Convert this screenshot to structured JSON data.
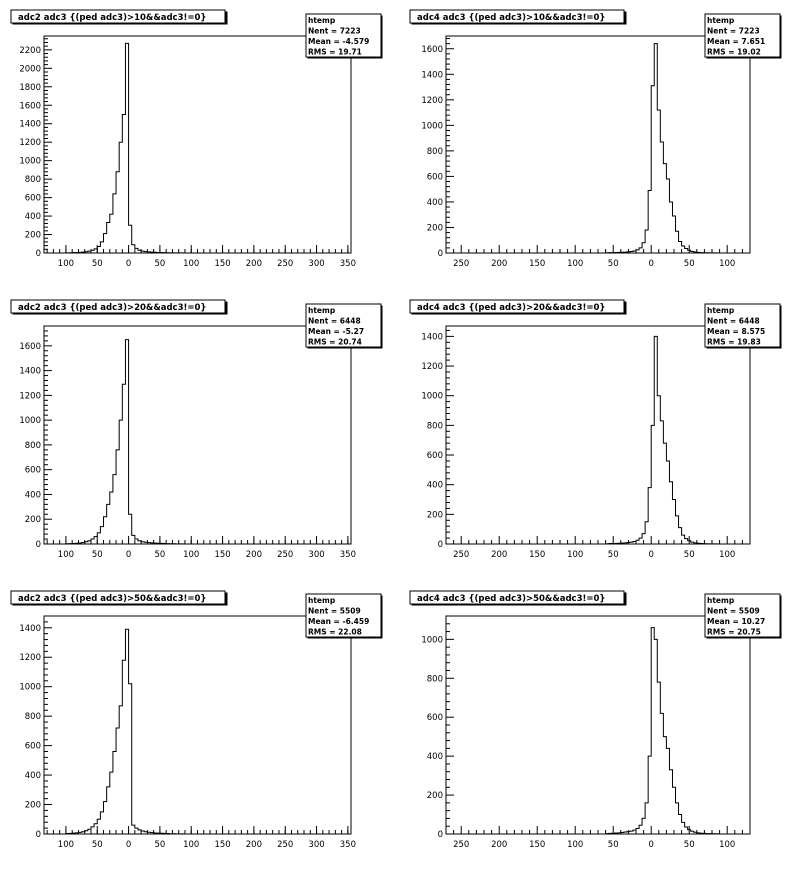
{
  "chart_data": [
    {
      "type": "histogram",
      "title": "adc2 adc3 {(ped adc3)>10&&adc3!=0}",
      "stats": {
        "name": "htemp",
        "entries_label": "Nent = 7223",
        "mean_label": "Mean = -4.579",
        "rms_label": "RMS = 19.71"
      },
      "xlim": [
        -135,
        355
      ],
      "ylim": [
        0,
        2350
      ],
      "xticks": [
        -100,
        -50,
        0,
        50,
        100,
        150,
        200,
        250,
        300,
        350
      ],
      "xtick_labels": [
        "100",
        "50",
        "0",
        "50",
        "100",
        "150",
        "200",
        "250",
        "300",
        "350"
      ],
      "yticks": [
        0,
        200,
        400,
        600,
        800,
        1000,
        1200,
        1400,
        1600,
        1800,
        2000,
        2200
      ],
      "ytick_labels": [
        "0",
        "200",
        "400",
        "600",
        "800",
        "1000",
        "1200",
        "1400",
        "1600",
        "1800",
        "2000",
        "2200"
      ],
      "bin_width": 5,
      "bins_start": -100,
      "values": [
        2,
        3,
        4,
        5,
        7,
        10,
        14,
        20,
        30,
        45,
        70,
        120,
        210,
        330,
        420,
        640,
        880,
        1200,
        1500,
        2270,
        300,
        90,
        50,
        30,
        20,
        15,
        12,
        10,
        8,
        6,
        5,
        4,
        3,
        2,
        2,
        2,
        1,
        1
      ]
    },
    {
      "type": "histogram",
      "title": "adc4 adc3 {(ped adc3)>10&&adc3!=0}",
      "stats": {
        "name": "htemp",
        "entries_label": "Nent = 7223",
        "mean_label": "Mean = 7.651",
        "rms_label": "RMS = 19.02"
      },
      "xlim": [
        -270,
        130
      ],
      "ylim": [
        0,
        1700
      ],
      "xticks": [
        -250,
        -200,
        -150,
        -100,
        -50,
        0,
        50,
        100
      ],
      "xtick_labels": [
        "250",
        "200",
        "150",
        "100",
        "50",
        "0",
        "50",
        "100"
      ],
      "yticks": [
        0,
        200,
        400,
        600,
        800,
        1000,
        1200,
        1400,
        1600
      ],
      "ytick_labels": [
        "0",
        "200",
        "400",
        "600",
        "800",
        "1000",
        "1200",
        "1400",
        "1600"
      ],
      "bin_width": 4,
      "bins_start": -60,
      "values": [
        2,
        3,
        3,
        4,
        5,
        6,
        7,
        9,
        12,
        16,
        24,
        40,
        80,
        180,
        490,
        1310,
        1640,
        1120,
        870,
        700,
        580,
        400,
        290,
        170,
        90,
        55,
        35,
        22,
        12,
        8,
        5,
        3,
        2,
        2,
        1,
        1,
        1
      ]
    },
    {
      "type": "histogram",
      "title": "adc2 adc3 {(ped adc3)>20&&adc3!=0}",
      "stats": {
        "name": "htemp",
        "entries_label": "Nent = 6448",
        "mean_label": "Mean = -5.27",
        "rms_label": "RMS = 20.74"
      },
      "xlim": [
        -135,
        355
      ],
      "ylim": [
        0,
        1760
      ],
      "xticks": [
        -100,
        -50,
        0,
        50,
        100,
        150,
        200,
        250,
        300,
        350
      ],
      "xtick_labels": [
        "100",
        "50",
        "0",
        "50",
        "100",
        "150",
        "200",
        "250",
        "300",
        "350"
      ],
      "yticks": [
        0,
        200,
        400,
        600,
        800,
        1000,
        1200,
        1400,
        1600
      ],
      "ytick_labels": [
        "0",
        "200",
        "400",
        "600",
        "800",
        "1000",
        "1200",
        "1400",
        "1600"
      ],
      "bin_width": 5,
      "bins_start": -100,
      "values": [
        2,
        3,
        4,
        6,
        8,
        12,
        18,
        26,
        40,
        60,
        90,
        140,
        220,
        320,
        420,
        560,
        760,
        1000,
        1290,
        1650,
        240,
        70,
        40,
        25,
        18,
        14,
        11,
        9,
        7,
        6,
        5,
        4,
        3,
        2,
        2,
        1,
        1,
        1
      ]
    },
    {
      "type": "histogram",
      "title": "adc4 adc3 {(ped adc3)>20&&adc3!=0}",
      "stats": {
        "name": "htemp",
        "entries_label": "Nent = 6448",
        "mean_label": "Mean = 8.575",
        "rms_label": "RMS = 19.83"
      },
      "xlim": [
        -270,
        130
      ],
      "ylim": [
        0,
        1470
      ],
      "xticks": [
        -250,
        -200,
        -150,
        -100,
        -50,
        0,
        50,
        100
      ],
      "xtick_labels": [
        "250",
        "200",
        "150",
        "100",
        "50",
        "0",
        "50",
        "100"
      ],
      "yticks": [
        0,
        200,
        400,
        600,
        800,
        1000,
        1200,
        1400
      ],
      "ytick_labels": [
        "0",
        "200",
        "400",
        "600",
        "800",
        "1000",
        "1200",
        "1400"
      ],
      "bin_width": 4,
      "bins_start": -60,
      "values": [
        2,
        3,
        3,
        4,
        5,
        6,
        8,
        10,
        13,
        17,
        25,
        40,
        70,
        150,
        380,
        800,
        1400,
        1000,
        830,
        680,
        560,
        420,
        300,
        190,
        110,
        60,
        36,
        22,
        13,
        8,
        5,
        3,
        2,
        2,
        1,
        1,
        1
      ]
    },
    {
      "type": "histogram",
      "title": "adc2 adc3 {(ped adc3)>50&&adc3!=0}",
      "stats": {
        "name": "htemp",
        "entries_label": "Nent = 5509",
        "mean_label": "Mean = -6.459",
        "rms_label": "RMS = 22.08"
      },
      "xlim": [
        -135,
        355
      ],
      "ylim": [
        0,
        1480
      ],
      "xticks": [
        -100,
        -50,
        0,
        50,
        100,
        150,
        200,
        250,
        300,
        350
      ],
      "xtick_labels": [
        "100",
        "50",
        "0",
        "50",
        "100",
        "150",
        "200",
        "250",
        "300",
        "350"
      ],
      "yticks": [
        0,
        200,
        400,
        600,
        800,
        1000,
        1200,
        1400
      ],
      "ytick_labels": [
        "0",
        "200",
        "400",
        "600",
        "800",
        "1000",
        "1200",
        "1400"
      ],
      "bin_width": 5,
      "bins_start": -100,
      "values": [
        3,
        4,
        6,
        8,
        11,
        15,
        22,
        32,
        48,
        70,
        100,
        150,
        220,
        320,
        420,
        560,
        720,
        870,
        1180,
        1390,
        1020,
        60,
        40,
        28,
        20,
        15,
        12,
        9,
        7,
        6,
        5,
        4,
        3,
        2,
        2,
        1,
        1,
        1
      ]
    },
    {
      "type": "histogram",
      "title": "adc4 adc3 {(ped adc3)>50&&adc3!=0}",
      "stats": {
        "name": "htemp",
        "entries_label": "Nent = 5509",
        "mean_label": "Mean = 10.27",
        "rms_label": "RMS = 20.75"
      },
      "xlim": [
        -270,
        130
      ],
      "ylim": [
        0,
        1120
      ],
      "xticks": [
        -250,
        -200,
        -150,
        -100,
        -50,
        0,
        50,
        100
      ],
      "xtick_labels": [
        "250",
        "200",
        "150",
        "100",
        "50",
        "0",
        "50",
        "100"
      ],
      "yticks": [
        0,
        200,
        400,
        600,
        800,
        1000
      ],
      "ytick_labels": [
        "0",
        "200",
        "400",
        "600",
        "800",
        "1000"
      ],
      "bin_width": 4,
      "bins_start": -60,
      "values": [
        2,
        3,
        4,
        5,
        6,
        8,
        10,
        12,
        15,
        20,
        28,
        45,
        80,
        160,
        400,
        1060,
        1000,
        780,
        620,
        500,
        440,
        330,
        240,
        160,
        100,
        60,
        36,
        22,
        14,
        9,
        6,
        4,
        3,
        2,
        2,
        1,
        1
      ]
    }
  ]
}
